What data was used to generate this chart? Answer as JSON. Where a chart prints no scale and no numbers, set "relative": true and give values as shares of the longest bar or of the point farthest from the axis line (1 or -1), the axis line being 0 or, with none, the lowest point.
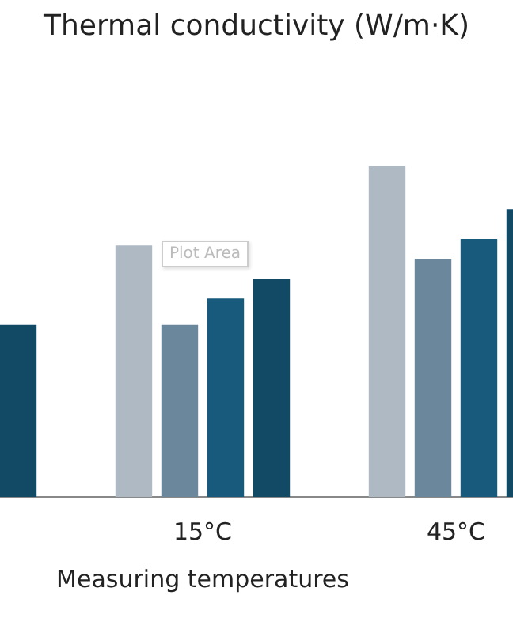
{
  "chart_data": {
    "type": "bar",
    "title": "Thermal conductivity (W/m·K)",
    "xlabel": "Measuring temperatures",
    "categories": [
      null,
      "15°C",
      "45°C"
    ],
    "relative": true,
    "legend": false,
    "grid": false,
    "series": [
      {
        "color": "#aeb9c4",
        "values": [
          null,
          0.76,
          1
        ]
      },
      {
        "color": "#6b879c",
        "values": [
          null,
          0.52,
          0.72
        ]
      },
      {
        "color": "#175a7c",
        "values": [
          null,
          0.6,
          0.78
        ]
      },
      {
        "color": "#124a66",
        "values": [
          0.52,
          0.66,
          0.87
        ]
      }
    ],
    "annotations": [
      "Plot Area"
    ]
  }
}
